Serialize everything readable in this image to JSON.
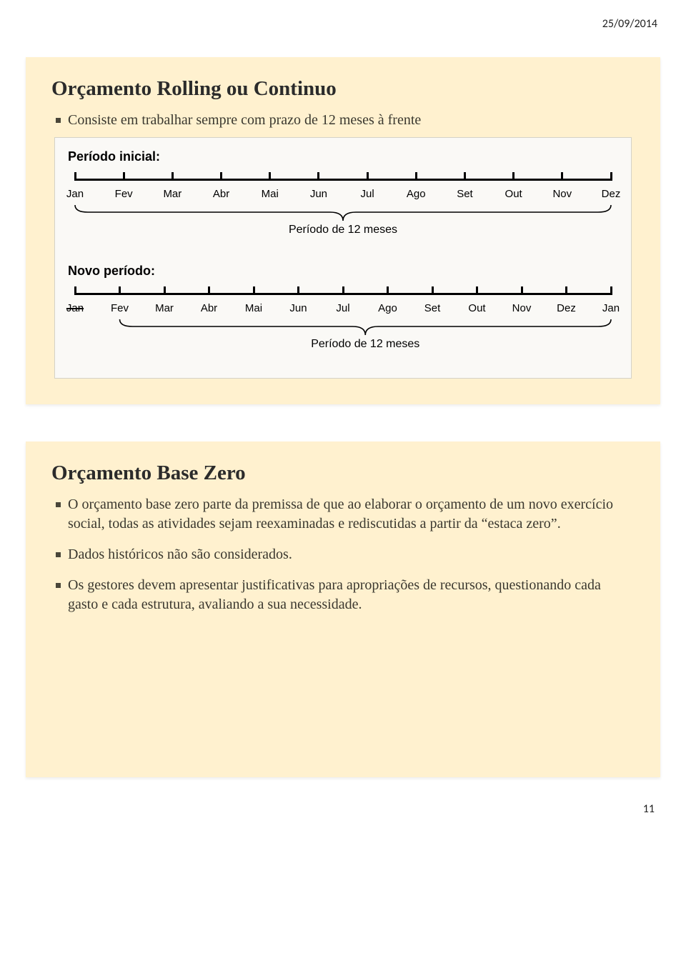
{
  "header": {
    "date": "25/09/2014",
    "page_num": "11"
  },
  "page_bg": "#ffffff",
  "slides": {
    "slide1": {
      "bg": "#fff1cf",
      "title": "Orçamento Rolling ou Continuo",
      "bullet": "Consiste em trabalhar sempre com prazo de 12 meses à frente",
      "diagram": {
        "bg": "#faf9f6",
        "period_initial_label": "Período inicial:",
        "period_new_label": "Novo período:",
        "brace_label": "Período de 12 meses",
        "months_initial": [
          "Jan",
          "Fev",
          "Mar",
          "Abr",
          "Mai",
          "Jun",
          "Jul",
          "Ago",
          "Set",
          "Out",
          "Nov",
          "Dez"
        ],
        "months_new": [
          "Jan",
          "Fev",
          "Mar",
          "Abr",
          "Mai",
          "Jun",
          "Jul",
          "Ago",
          "Set",
          "Out",
          "Nov",
          "Dez",
          "Jan"
        ],
        "struck_index_new": 0,
        "text_color": "#000000",
        "line_color": "#000000",
        "label_font_family": "Arial",
        "label_fontsize": 15,
        "title_fontsize": 18
      }
    },
    "slide2": {
      "bg": "#fff1cf",
      "title": "Orçamento Base Zero",
      "bullets": [
        "O orçamento base zero parte da premissa de que ao elaborar o orçamento de um novo exercício social, todas as atividades sejam reexaminadas e rediscutidas a partir da “estaca zero”.",
        "Dados históricos não são considerados.",
        "Os gestores devem apresentar justificativas para apropriações de recursos, questionando cada gasto e cada estrutura, avaliando a sua necessidade."
      ]
    }
  },
  "typography": {
    "slide_title_fontsize": 29,
    "bullet_fontsize": 20,
    "slide_title_color": "#2b2b2b",
    "bullet_color": "#3a382f",
    "bullet_marker_color": "#4a4639"
  }
}
